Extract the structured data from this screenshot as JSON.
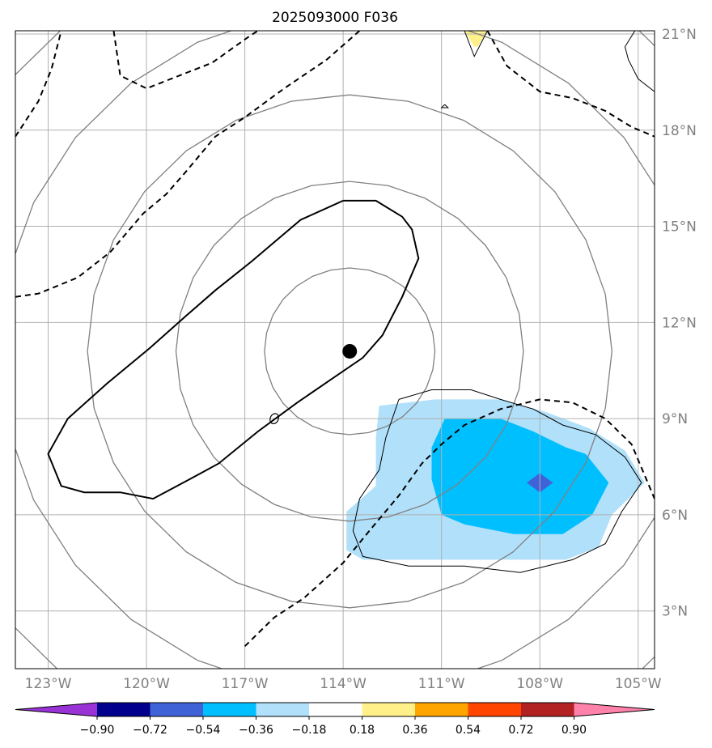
{
  "title": "2025093000 F036",
  "map": {
    "lon_min": -124,
    "lon_max": -104.5,
    "lat_min": 1.2,
    "lat_max": 21.1,
    "center_marker": {
      "lon": -113.8,
      "lat": 11.1
    },
    "lat_ticks": [
      {
        "value": 3,
        "label": "3°N"
      },
      {
        "value": 6,
        "label": "6°N"
      },
      {
        "value": 9,
        "label": "9°N"
      },
      {
        "value": 12,
        "label": "12°N"
      },
      {
        "value": 15,
        "label": "15°N"
      },
      {
        "value": 18,
        "label": "18°N"
      },
      {
        "value": 21,
        "label": "21°N"
      }
    ],
    "lon_ticks": [
      {
        "value": -123,
        "label": "123°W"
      },
      {
        "value": -120,
        "label": "120°W"
      },
      {
        "value": -117,
        "label": "117°W"
      },
      {
        "value": -114,
        "label": "114°W"
      },
      {
        "value": -111,
        "label": "111°W"
      },
      {
        "value": -108,
        "label": "108°W"
      },
      {
        "value": -105,
        "label": "105°W"
      }
    ],
    "radial_contours_deg": [
      2.6,
      5.3,
      8.0,
      10.7,
      13.4
    ],
    "shading": [
      {
        "level": "-0.36 to -0.18",
        "color": "#b0e0fa",
        "polygon": [
          [
            -112.9,
            9.4
          ],
          [
            -111.2,
            9.6
          ],
          [
            -109.2,
            9.6
          ],
          [
            -107.8,
            9.2
          ],
          [
            -106.5,
            8.7
          ],
          [
            -105.4,
            8.0
          ],
          [
            -104.8,
            7.0
          ],
          [
            -105.8,
            6.0
          ],
          [
            -106.2,
            5.0
          ],
          [
            -107.2,
            4.6
          ],
          [
            -109.5,
            4.6
          ],
          [
            -111.5,
            4.6
          ],
          [
            -113.4,
            4.6
          ],
          [
            -113.9,
            4.9
          ],
          [
            -113.9,
            6.1
          ],
          [
            -113.0,
            6.9
          ],
          [
            -113.0,
            8.4
          ],
          [
            -112.9,
            9.4
          ]
        ]
      },
      {
        "level": "-0.54 to -0.36",
        "color": "#00bfff",
        "polygon": [
          [
            -110.9,
            9.0
          ],
          [
            -109.2,
            9.0
          ],
          [
            -108.2,
            8.6
          ],
          [
            -107.2,
            8.1
          ],
          [
            -106.6,
            7.9
          ],
          [
            -105.9,
            7.0
          ],
          [
            -106.4,
            6.0
          ],
          [
            -107.3,
            5.4
          ],
          [
            -108.8,
            5.4
          ],
          [
            -110.3,
            5.7
          ],
          [
            -111.0,
            6.0
          ],
          [
            -111.3,
            7.1
          ],
          [
            -111.3,
            8.1
          ],
          [
            -110.9,
            9.0
          ]
        ]
      },
      {
        "level": "-0.72 to -0.54",
        "color": "#3f62d6",
        "polygon": [
          [
            -108.0,
            7.3
          ],
          [
            -107.6,
            7.0
          ],
          [
            -108.0,
            6.7
          ],
          [
            -108.4,
            7.0
          ],
          [
            -108.0,
            7.3
          ]
        ]
      },
      {
        "level": "0.18 to 0.36",
        "color": "#fff08a",
        "polygon": [
          [
            -110.3,
            21.1
          ],
          [
            -109.6,
            21.1
          ],
          [
            -109.9,
            20.6
          ],
          [
            -110.0,
            20.6
          ],
          [
            -110.3,
            21.1
          ]
        ]
      }
    ],
    "thin_contours": [
      [
        [
          -112.3,
          9.6
        ],
        [
          -111.3,
          9.9
        ],
        [
          -110.1,
          9.9
        ],
        [
          -109.2,
          9.6
        ],
        [
          -108.2,
          9.3
        ],
        [
          -107.3,
          8.8
        ],
        [
          -106.3,
          8.5
        ],
        [
          -105.4,
          7.8
        ],
        [
          -104.9,
          7.0
        ],
        [
          -105.5,
          6.1
        ],
        [
          -106.0,
          5.1
        ],
        [
          -107.0,
          4.6
        ],
        [
          -108.6,
          4.2
        ],
        [
          -110.3,
          4.4
        ],
        [
          -112.0,
          4.4
        ],
        [
          -113.4,
          4.7
        ],
        [
          -113.7,
          5.5
        ],
        [
          -113.5,
          6.5
        ],
        [
          -112.9,
          7.4
        ],
        [
          -112.7,
          8.4
        ],
        [
          -112.3,
          9.6
        ]
      ],
      [
        [
          -110.3,
          21.1
        ],
        [
          -110.0,
          20.3
        ],
        [
          -109.6,
          21.1
        ]
      ],
      [
        [
          -110.9,
          18.8
        ],
        [
          -110.8,
          18.7
        ],
        [
          -111.0,
          18.7
        ],
        [
          -110.9,
          18.8
        ]
      ],
      [
        [
          -105.1,
          21.1
        ],
        [
          -105.4,
          20.6
        ],
        [
          -105.3,
          20.2
        ],
        [
          -105.0,
          19.6
        ],
        [
          -104.5,
          19.2
        ]
      ]
    ],
    "solid_contours": [
      [
        [
          -114.0,
          15.8
        ],
        [
          -113.0,
          15.8
        ],
        [
          -112.2,
          15.3
        ],
        [
          -111.9,
          14.9
        ],
        [
          -111.7,
          14.0
        ],
        [
          -112.2,
          12.8
        ],
        [
          -112.8,
          11.6
        ],
        [
          -113.4,
          10.9
        ],
        [
          -114.4,
          10.2
        ],
        [
          -115.4,
          9.5
        ],
        [
          -116.6,
          8.6
        ],
        [
          -117.8,
          7.6
        ],
        [
          -118.7,
          7.1
        ],
        [
          -119.8,
          6.5
        ],
        [
          -120.8,
          6.7
        ],
        [
          -121.9,
          6.7
        ],
        [
          -122.6,
          6.9
        ],
        [
          -123.0,
          7.9
        ],
        [
          -122.4,
          9.0
        ],
        [
          -121.2,
          10.1
        ],
        [
          -119.9,
          11.2
        ],
        [
          -118.8,
          12.2
        ],
        [
          -117.9,
          13.0
        ],
        [
          -116.8,
          13.9
        ],
        [
          -115.3,
          15.2
        ],
        [
          -114.0,
          15.8
        ]
      ]
    ],
    "dashed_contours": [
      [
        [
          -117.0,
          1.9
        ],
        [
          -116.1,
          2.8
        ],
        [
          -115.2,
          3.4
        ],
        [
          -114.0,
          4.5
        ],
        [
          -113.2,
          5.5
        ],
        [
          -112.3,
          6.6
        ],
        [
          -111.6,
          7.6
        ],
        [
          -111.0,
          8.2
        ],
        [
          -110.3,
          8.8
        ],
        [
          -109.2,
          9.3
        ],
        [
          -108.0,
          9.6
        ],
        [
          -107.0,
          9.5
        ],
        [
          -106.0,
          9.0
        ],
        [
          -105.2,
          8.2
        ],
        [
          -104.5,
          6.5
        ]
      ],
      [
        [
          -124.0,
          12.8
        ],
        [
          -123.3,
          12.9
        ],
        [
          -122.1,
          13.4
        ],
        [
          -121.1,
          14.2
        ],
        [
          -120.1,
          15.4
        ],
        [
          -119.4,
          16.0
        ],
        [
          -118.8,
          16.7
        ],
        [
          -117.9,
          17.8
        ],
        [
          -117.0,
          18.4
        ],
        [
          -115.8,
          19.3
        ],
        [
          -114.5,
          20.2
        ],
        [
          -113.5,
          21.1
        ]
      ],
      [
        [
          -124.0,
          17.8
        ],
        [
          -123.3,
          18.9
        ],
        [
          -122.9,
          19.9
        ],
        [
          -122.6,
          21.1
        ]
      ],
      [
        [
          -121.0,
          21.1
        ],
        [
          -120.8,
          19.7
        ],
        [
          -120.0,
          19.3
        ],
        [
          -119.0,
          19.7
        ],
        [
          -118.0,
          20.1
        ],
        [
          -116.9,
          20.9
        ],
        [
          -116.6,
          21.1
        ]
      ],
      [
        [
          -109.6,
          21.1
        ],
        [
          -109.0,
          20.0
        ],
        [
          -108.0,
          19.2
        ],
        [
          -107.0,
          19.0
        ],
        [
          -106.0,
          18.6
        ],
        [
          -105.2,
          18.1
        ],
        [
          -104.5,
          17.8
        ]
      ]
    ],
    "small_ring": {
      "lon": -116.1,
      "lat": 9.0
    }
  },
  "colorbar": {
    "colors": [
      "#9933d6",
      "#00008c",
      "#3f62d6",
      "#00bfff",
      "#b0e0fa",
      "#ffffff",
      "#fff08a",
      "#ffa500",
      "#ff4500",
      "#b22222",
      "#ff82ab"
    ],
    "tick_labels": [
      "−0.90",
      "−0.72",
      "−0.54",
      "−0.36",
      "−0.18",
      "0.18",
      "0.36",
      "0.54",
      "0.72",
      "0.90"
    ]
  }
}
